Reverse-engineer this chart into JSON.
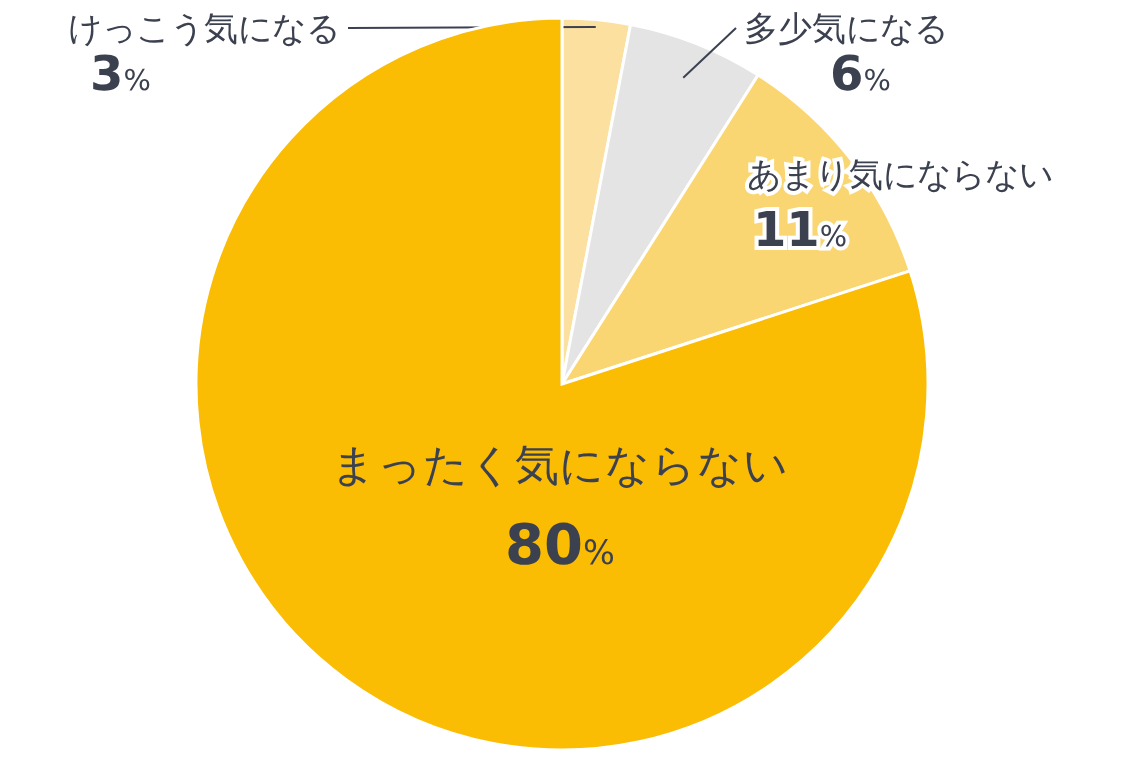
{
  "chart_data": {
    "type": "pie",
    "categories": [
      "けっこう気になる",
      "多少気になる",
      "あまり気にならない",
      "まったく気にならない"
    ],
    "values": [
      3,
      6,
      11,
      80
    ],
    "value_labels": [
      "3%",
      "6%",
      "11%",
      "80%"
    ],
    "colors": [
      "#fbe0a0",
      "#e4e4e4",
      "#fad673",
      "#fbbc04"
    ]
  }
}
